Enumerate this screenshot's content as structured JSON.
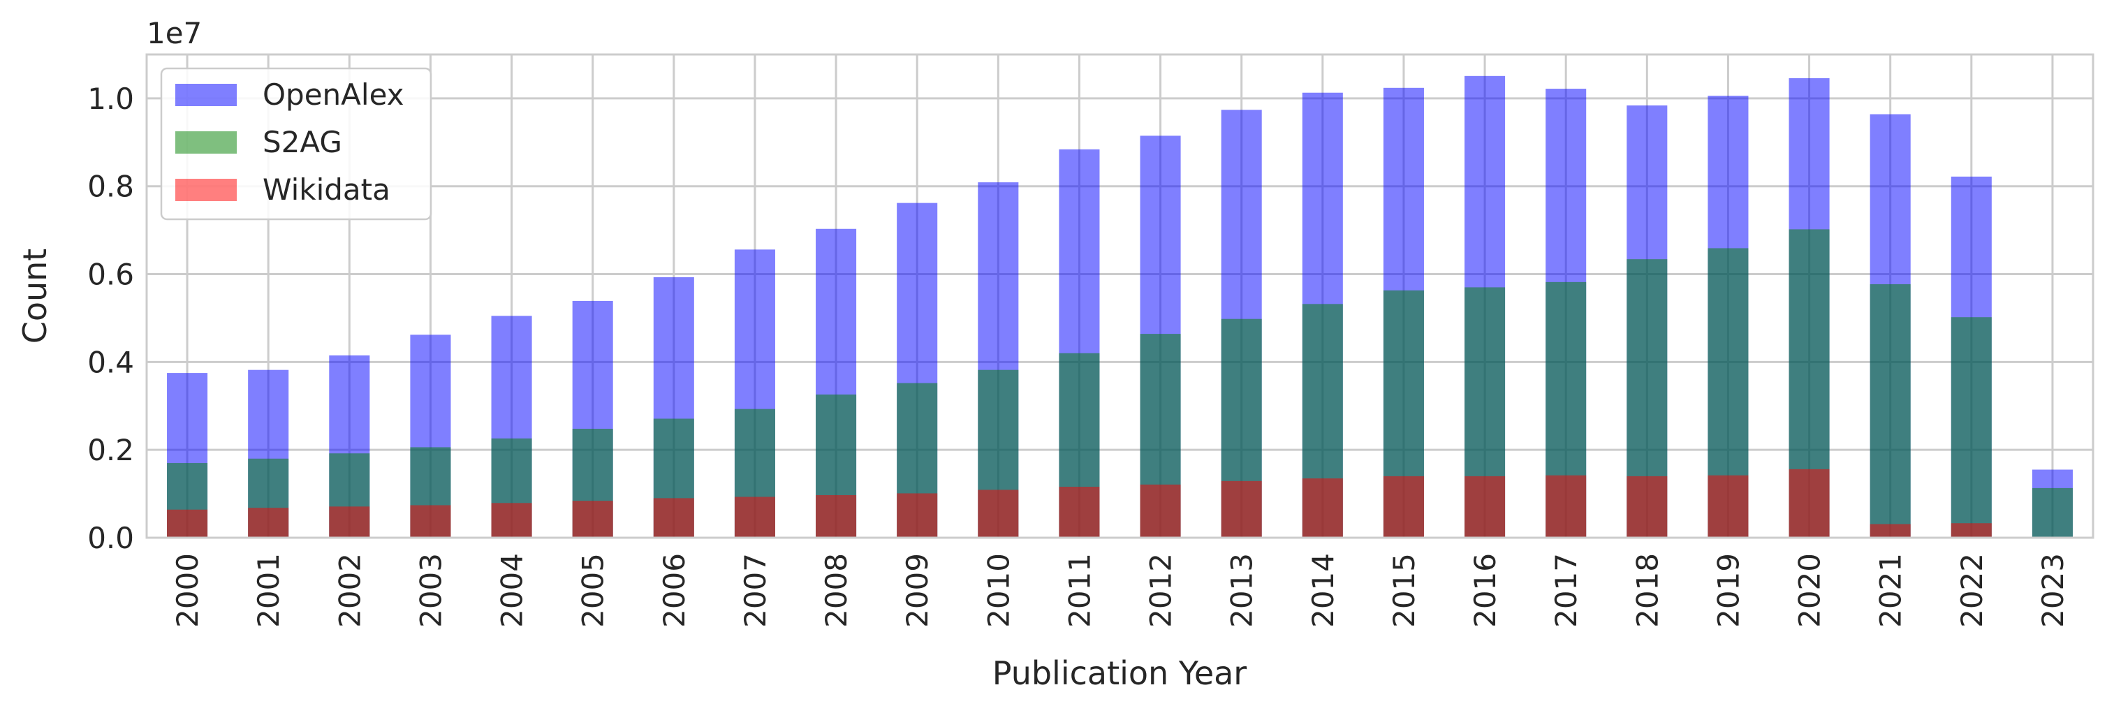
{
  "chart_data": {
    "type": "bar",
    "stacked": false,
    "overlay": true,
    "categories": [
      "2000",
      "2001",
      "2002",
      "2003",
      "2004",
      "2005",
      "2006",
      "2007",
      "2008",
      "2009",
      "2010",
      "2011",
      "2012",
      "2013",
      "2014",
      "2015",
      "2016",
      "2017",
      "2018",
      "2019",
      "2020",
      "2021",
      "2022",
      "2023"
    ],
    "series": [
      {
        "name": "OpenAlex",
        "color": "#0000ff",
        "opacity": 0.5,
        "values": [
          3750000,
          3820000,
          4150000,
          4620000,
          5050000,
          5390000,
          5930000,
          6560000,
          7030000,
          7620000,
          8090000,
          8840000,
          9150000,
          9740000,
          10130000,
          10240000,
          10510000,
          10220000,
          9840000,
          10060000,
          10460000,
          9640000,
          8220000,
          1550000
        ]
      },
      {
        "name": "S2AG",
        "color": "#008000",
        "opacity": 0.5,
        "values": [
          1700000,
          1800000,
          1920000,
          2060000,
          2260000,
          2480000,
          2710000,
          2930000,
          3260000,
          3520000,
          3820000,
          4200000,
          4640000,
          4980000,
          5320000,
          5630000,
          5700000,
          5820000,
          6340000,
          6590000,
          7020000,
          5770000,
          5020000,
          1130000
        ]
      },
      {
        "name": "Wikidata",
        "color": "#ff0000",
        "opacity": 0.5,
        "values": [
          640000,
          680000,
          710000,
          740000,
          790000,
          840000,
          900000,
          930000,
          970000,
          1010000,
          1090000,
          1160000,
          1210000,
          1290000,
          1350000,
          1400000,
          1400000,
          1420000,
          1400000,
          1420000,
          1560000,
          310000,
          330000,
          10000
        ]
      }
    ],
    "xlabel": "Publication Year",
    "ylabel": "Count",
    "y_offset_text": "1e7",
    "y_scale_factor": 10000000,
    "ylim": [
      0,
      11000000
    ],
    "yticks": [
      0,
      2000000,
      4000000,
      6000000,
      8000000,
      10000000
    ],
    "ytick_labels": [
      "0.0",
      "0.2",
      "0.4",
      "0.6",
      "0.8",
      "1.0"
    ],
    "grid": true,
    "legend_position": "upper-left"
  }
}
